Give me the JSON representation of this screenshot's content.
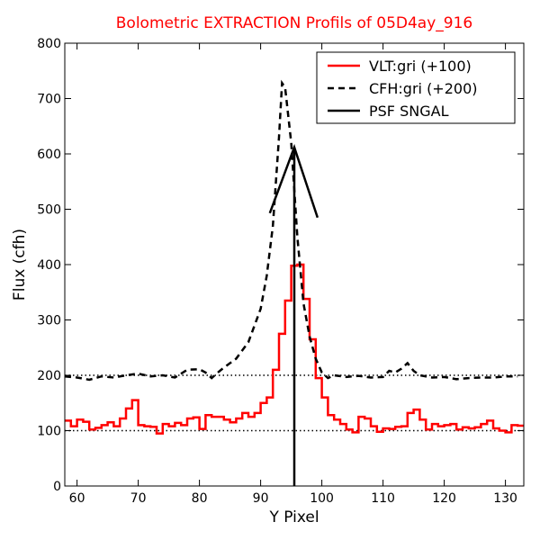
{
  "chart_data": {
    "type": "line",
    "title": "Bolometric EXTRACTION Profils of 05D4ay_916",
    "title_color": "#ff0000",
    "xlabel": "Y Pixel",
    "ylabel": "Flux (cfh)",
    "xlim": [
      58,
      133
    ],
    "ylim": [
      0,
      800
    ],
    "xticks": [
      60,
      70,
      80,
      90,
      100,
      110,
      120,
      130
    ],
    "yticks": [
      0,
      100,
      200,
      300,
      400,
      500,
      600,
      700,
      800
    ],
    "legend_position": "top-right",
    "reference_lines": [
      100,
      200
    ],
    "series": [
      {
        "name": "VLT:gri (+100)",
        "style": "steps",
        "color": "#ff0000",
        "x": [
          58,
          59,
          60,
          61,
          62,
          63,
          64,
          65,
          66,
          67,
          68,
          69,
          70,
          71,
          72,
          73,
          74,
          75,
          76,
          77,
          78,
          79,
          80,
          81,
          82,
          83,
          84,
          85,
          86,
          87,
          88,
          89,
          90,
          91,
          92,
          93,
          94,
          95,
          96,
          97,
          98,
          99,
          100,
          101,
          102,
          103,
          104,
          105,
          106,
          107,
          108,
          109,
          110,
          111,
          112,
          113,
          114,
          115,
          116,
          117,
          118,
          119,
          120,
          121,
          122,
          123,
          124,
          125,
          126,
          127,
          128,
          129,
          130,
          131,
          132
        ],
        "y": [
          118,
          108,
          120,
          116,
          102,
          105,
          110,
          115,
          108,
          122,
          140,
          155,
          110,
          108,
          107,
          95,
          112,
          108,
          114,
          110,
          122,
          124,
          103,
          128,
          125,
          125,
          120,
          115,
          122,
          132,
          125,
          132,
          150,
          160,
          210,
          275,
          335,
          398,
          400,
          338,
          265,
          195,
          160,
          128,
          120,
          112,
          102,
          97,
          125,
          122,
          108,
          98,
          104,
          103,
          107,
          108,
          132,
          138,
          120,
          102,
          112,
          108,
          110,
          112,
          102,
          106,
          104,
          106,
          112,
          118,
          104,
          100,
          97,
          110,
          109
        ]
      },
      {
        "name": "CFH:gri (+200)",
        "style": "dashed",
        "color": "#000000",
        "x": [
          58,
          60,
          62,
          64,
          66,
          68,
          70,
          72,
          74,
          76,
          78,
          80,
          81,
          82,
          83,
          84,
          86,
          88,
          90,
          91,
          92,
          93,
          93.5,
          94,
          95,
          96,
          97,
          98,
          99,
          100,
          101,
          102,
          104,
          106,
          108,
          110,
          111,
          112,
          113,
          114,
          115,
          116,
          118,
          120,
          122,
          124,
          126,
          128,
          130,
          132
        ],
        "y": [
          198,
          196,
          192,
          198,
          196,
          200,
          203,
          198,
          200,
          196,
          210,
          211,
          205,
          195,
          205,
          214,
          230,
          260,
          320,
          380,
          470,
          630,
          728,
          720,
          620,
          450,
          330,
          270,
          230,
          205,
          195,
          200,
          197,
          199,
          196,
          197,
          208,
          205,
          212,
          222,
          208,
          200,
          196,
          197,
          193,
          195,
          196,
          196,
          198,
          198
        ]
      },
      {
        "name": "PSF SNGAL",
        "style": "solid",
        "color": "#000000",
        "x": [
          91.5,
          95.5,
          99.3
        ],
        "y": [
          493,
          612,
          485
        ],
        "vertical_at": 95.5
      }
    ]
  }
}
